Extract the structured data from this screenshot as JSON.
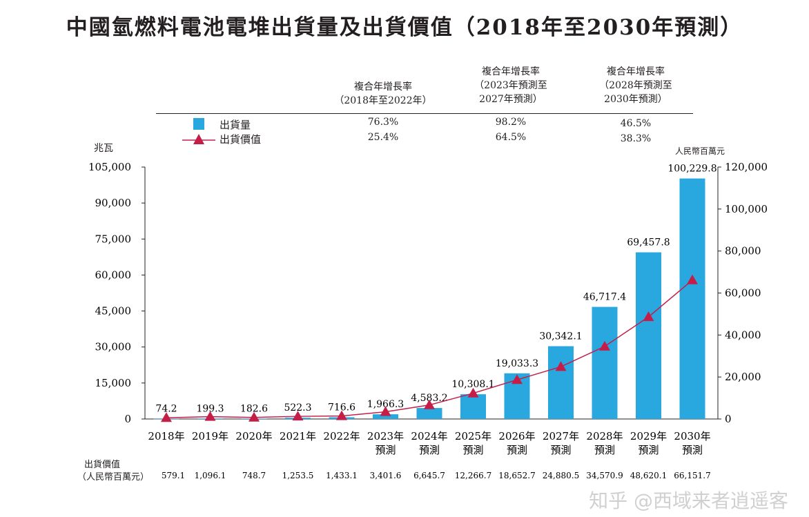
{
  "chart_data": {
    "type": "bar+line",
    "title": "中國氫燃料電池電堆出貨量及出貨價值（2018年至2030年預測）",
    "categories": [
      [
        "2018年",
        ""
      ],
      [
        "2019年",
        ""
      ],
      [
        "2020年",
        ""
      ],
      [
        "2021年",
        ""
      ],
      [
        "2022年",
        ""
      ],
      [
        "2023年",
        "預測"
      ],
      [
        "2024年",
        "預測"
      ],
      [
        "2025年",
        "預測"
      ],
      [
        "2026年",
        "預測"
      ],
      [
        "2027年",
        "預測"
      ],
      [
        "2028年",
        "預測"
      ],
      [
        "2029年",
        "預測"
      ],
      [
        "2030年",
        "預測"
      ]
    ],
    "series": [
      {
        "name": "出貨量",
        "type": "bar",
        "axis": "left",
        "color": "#29a8e0",
        "values": [
          74.2,
          199.3,
          182.6,
          522.3,
          716.6,
          1966.3,
          4583.2,
          10308.1,
          19033.3,
          30342.1,
          46717.4,
          69457.8,
          100229.8
        ],
        "labels": [
          "74.2",
          "199.3",
          "182.6",
          "522.3",
          "716.6",
          "1,966.3",
          "4,583.2",
          "10,308.1",
          "19,033.3",
          "30,342.1",
          "46,717.4",
          "69,457.8",
          "100,229.8"
        ]
      },
      {
        "name": "出貨價值",
        "type": "line",
        "axis": "right",
        "color": "#c41e48",
        "values": [
          579.1,
          1096.1,
          748.7,
          1253.5,
          1433.1,
          3401.6,
          6645.7,
          12266.7,
          18652.7,
          24880.5,
          34570.9,
          48620.1,
          66151.7
        ],
        "labels": [
          "579.1",
          "1,096.1",
          "748.7",
          "1,253.5",
          "1,433.1",
          "3,401.6",
          "6,645.7",
          "12,266.7",
          "18,652.7",
          "24,880.5",
          "34,570.9",
          "48,620.1",
          "66,151.7"
        ]
      }
    ],
    "left_axis": {
      "label": "兆瓦",
      "ylim": [
        0,
        105000
      ],
      "ticks": [
        "0",
        "15,000",
        "30,000",
        "45,000",
        "60,000",
        "75,000",
        "90,000",
        "105,000"
      ]
    },
    "right_axis": {
      "label": "人民幣百萬元",
      "ylim": [
        0,
        120000
      ],
      "ticks": [
        "0",
        "20,000",
        "40,000",
        "60,000",
        "80,000",
        "100,000",
        "120,000"
      ]
    },
    "cagr_headers": [
      [
        "複合年增長率",
        "（2018年至2022年）"
      ],
      [
        "複合年增長率",
        "（2023年預測至",
        "2027年預測）"
      ],
      [
        "複合年增長率",
        "（2028年預測至",
        "2030年預測）"
      ]
    ],
    "cagr_rows": [
      {
        "name": "出貨量",
        "values": [
          "76.3%",
          "98.2%",
          "46.5%"
        ]
      },
      {
        "name": "出貨價值",
        "values": [
          "25.4%",
          "64.5%",
          "38.3%"
        ]
      }
    ],
    "table_row_label": [
      "出貨價值",
      "（人民幣百萬元）"
    ]
  },
  "watermark": "知乎 @西域来者逍遥客"
}
